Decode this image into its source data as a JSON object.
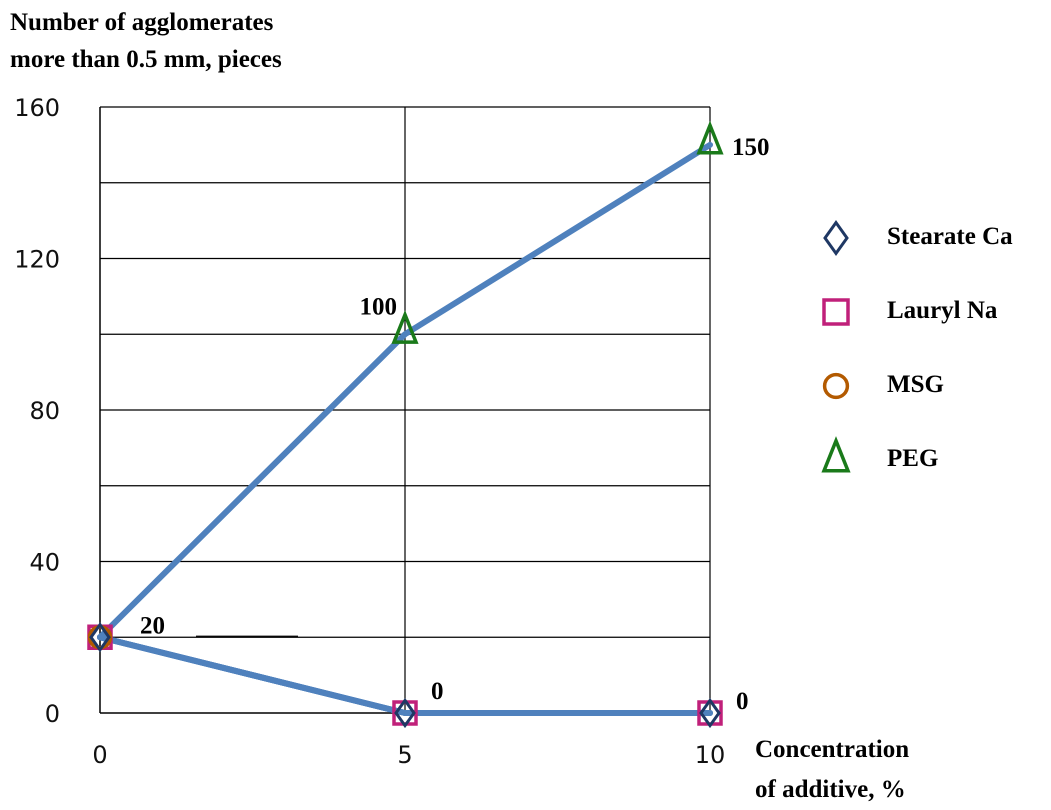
{
  "chart_data": {
    "type": "line",
    "ylabel_lines": [
      "Number of agglomerates",
      "more than 0.5 mm, pieces"
    ],
    "xlabel_lines": [
      "Concentration",
      "of additive, %"
    ],
    "x": [
      0,
      5,
      10
    ],
    "xticks": [
      "0",
      "5",
      "10"
    ],
    "yticks": [
      "0",
      "40",
      "80",
      "120",
      "160"
    ],
    "ylim": [
      0,
      160
    ],
    "grid": true,
    "legend_position": "right",
    "line_color": "#4f81bd",
    "series": [
      {
        "name": "Stearate Ca",
        "marker": "diamond",
        "color": "#1f3864",
        "values": [
          20,
          0,
          0
        ]
      },
      {
        "name": "Lauryl Na",
        "marker": "square",
        "color": "#c0207a",
        "values": [
          20,
          0,
          0
        ]
      },
      {
        "name": "MSG",
        "marker": "circle",
        "color": "#b35a00",
        "values": [
          20,
          0,
          0
        ]
      },
      {
        "name": "PEG",
        "marker": "triangle",
        "color": "#1a7a1a",
        "values": [
          20,
          100,
          150
        ]
      }
    ],
    "data_labels": [
      "20",
      "0",
      "0",
      "100",
      "150"
    ]
  }
}
